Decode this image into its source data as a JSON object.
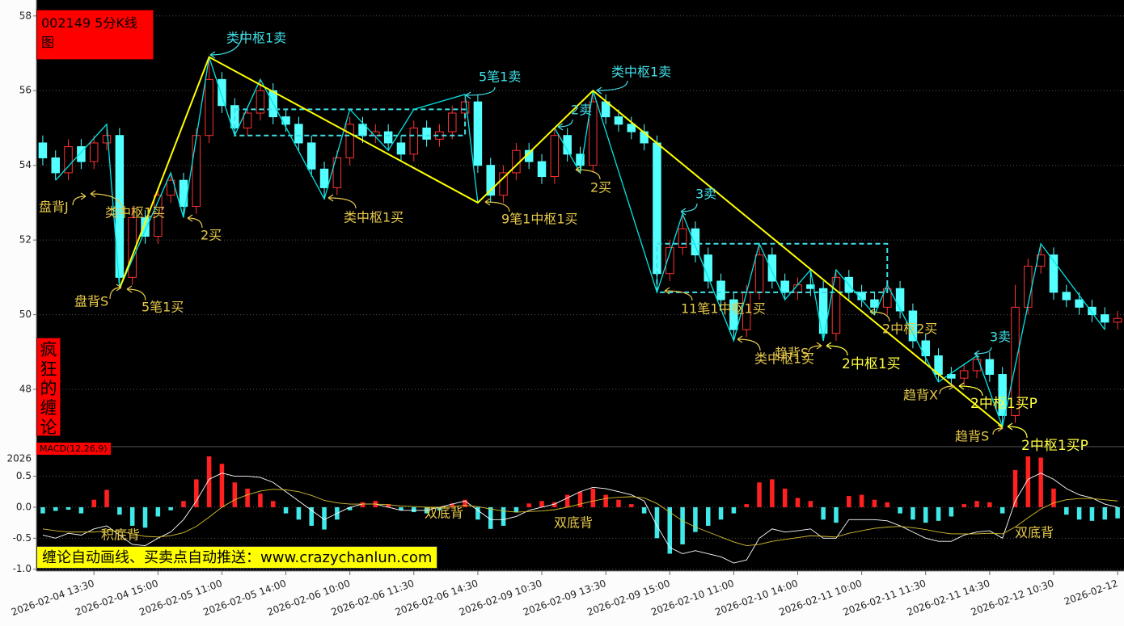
{
  "chart_data": [
    {
      "type": "candlestick",
      "title": "002149 5分K线图",
      "side_label": "疯狂的缠论",
      "categories": [
        null,
        null,
        null,
        null,
        "2026-02-04 13:30",
        null,
        null,
        null,
        null,
        "2026-02-04 15:00",
        null,
        null,
        null,
        null,
        "2026-02-05 11:00",
        null,
        null,
        null,
        null,
        "2026-02-05 14:00",
        null,
        null,
        null,
        null,
        "2026-02-06 10:00",
        null,
        null,
        null,
        null,
        "2026-02-06 11:30",
        null,
        null,
        null,
        null,
        "2026-02-06 14:30",
        null,
        null,
        null,
        null,
        "2026-02-09 10:30",
        null,
        null,
        null,
        null,
        "2026-02-09 13:30",
        null,
        null,
        null,
        null,
        "2026-02-09 15:00",
        null,
        null,
        null,
        null,
        "2026-02-10 11:00",
        null,
        null,
        null,
        null,
        "2026-02-10 14:00",
        null,
        null,
        null,
        null,
        "2026-02-11 10:00",
        null,
        null,
        null,
        null,
        "2026-02-11 11:30",
        null,
        null,
        null,
        null,
        "2026-02-11 14:30",
        null,
        null,
        null,
        null,
        "2026-02-12 10:30",
        null,
        null,
        null,
        null,
        "2026-02-12"
      ],
      "open": [
        54.6,
        54.2,
        53.8,
        54.5,
        54.1,
        54.6,
        54.8,
        51.0,
        52.6,
        52.1,
        53.2,
        53.6,
        52.9,
        54.8,
        56.3,
        55.6,
        55.0,
        55.4,
        56.0,
        55.3,
        55.1,
        54.6,
        53.9,
        53.4,
        54.2,
        55.1,
        54.8,
        54.9,
        54.6,
        54.3,
        55.0,
        54.7,
        54.9,
        55.4,
        55.7,
        54.0,
        53.2,
        53.8,
        54.4,
        54.1,
        53.7,
        54.8,
        54.3,
        54.0,
        55.7,
        55.3,
        55.1,
        54.9,
        54.6,
        51.1,
        51.8,
        52.3,
        51.6,
        50.9,
        50.4,
        49.6,
        50.6,
        51.6,
        50.9,
        50.6,
        50.8,
        50.7,
        49.5,
        51.0,
        50.6,
        50.4,
        50.2,
        50.7,
        50.1,
        49.3,
        48.9,
        48.4,
        48.3,
        48.5,
        48.8,
        48.4,
        47.3,
        50.2,
        51.3,
        51.6,
        50.6,
        50.4,
        50.2,
        50.0,
        49.8
      ],
      "high": [
        54.8,
        54.4,
        54.7,
        54.7,
        54.8,
        55.1,
        55.0,
        52.9,
        52.8,
        53.4,
        53.8,
        53.8,
        55.0,
        56.9,
        56.5,
        55.8,
        55.6,
        56.3,
        56.2,
        55.5,
        55.3,
        54.8,
        54.1,
        54.4,
        55.3,
        55.3,
        55.1,
        55.1,
        54.8,
        55.2,
        55.2,
        55.1,
        55.6,
        55.9,
        55.9,
        54.2,
        54.0,
        54.6,
        54.6,
        54.3,
        55.0,
        55.0,
        54.5,
        56.0,
        55.9,
        55.5,
        55.3,
        55.1,
        54.8,
        52.0,
        52.7,
        52.5,
        51.8,
        51.1,
        50.6,
        50.8,
        51.9,
        51.8,
        51.1,
        51.0,
        51.2,
        50.9,
        51.2,
        51.2,
        50.8,
        50.6,
        50.9,
        50.9,
        50.3,
        49.5,
        49.1,
        48.6,
        48.7,
        49.0,
        49.0,
        48.6,
        50.8,
        51.5,
        51.9,
        51.8,
        50.8,
        50.6,
        50.4,
        50.2,
        50.1
      ],
      "low": [
        54.0,
        53.6,
        53.6,
        53.9,
        53.9,
        54.4,
        50.7,
        50.8,
        51.9,
        51.9,
        53.0,
        52.6,
        52.7,
        54.6,
        55.4,
        54.8,
        54.8,
        55.2,
        55.1,
        54.9,
        54.4,
        53.7,
        53.1,
        53.2,
        54.0,
        54.6,
        54.6,
        54.4,
        54.1,
        54.1,
        54.5,
        54.5,
        54.7,
        55.2,
        53.8,
        53.0,
        53.0,
        53.6,
        53.9,
        53.5,
        53.5,
        54.1,
        53.8,
        53.8,
        55.1,
        54.9,
        54.7,
        54.4,
        50.6,
        50.9,
        51.6,
        51.4,
        50.7,
        50.2,
        49.3,
        49.4,
        50.4,
        50.7,
        50.4,
        50.4,
        50.5,
        49.3,
        49.3,
        50.4,
        50.2,
        50.0,
        50.0,
        49.9,
        49.1,
        48.7,
        48.2,
        48.1,
        48.1,
        48.3,
        48.2,
        47.0,
        47.1,
        50.0,
        51.1,
        50.4,
        50.2,
        50.0,
        49.8,
        49.6,
        49.6
      ],
      "close": [
        54.2,
        53.8,
        54.5,
        54.1,
        54.6,
        54.8,
        51.0,
        52.6,
        52.1,
        53.2,
        53.6,
        52.9,
        54.8,
        56.3,
        55.6,
        55.0,
        55.4,
        56.0,
        55.3,
        55.1,
        54.6,
        53.9,
        53.4,
        54.2,
        55.1,
        54.8,
        54.9,
        54.6,
        54.3,
        55.0,
        54.7,
        54.9,
        55.4,
        55.7,
        54.0,
        53.2,
        53.8,
        54.4,
        54.1,
        53.7,
        54.8,
        54.3,
        54.0,
        55.7,
        55.3,
        55.1,
        54.9,
        54.6,
        51.1,
        51.8,
        52.3,
        51.6,
        50.9,
        50.4,
        49.6,
        50.6,
        51.6,
        50.9,
        50.6,
        50.8,
        50.7,
        49.5,
        51.0,
        50.6,
        50.4,
        50.2,
        50.7,
        50.1,
        49.3,
        48.9,
        48.4,
        48.3,
        48.5,
        48.8,
        48.4,
        47.3,
        50.2,
        51.3,
        51.6,
        50.6,
        50.4,
        50.2,
        50.0,
        49.8,
        49.9
      ],
      "up_color": "#ff3232",
      "down_color": "#54ffff",
      "ylim": [
        46.53,
        58.32
      ],
      "yticks": [
        48,
        50,
        52,
        54,
        56,
        58
      ],
      "grid": true,
      "strokes": [
        {
          "color": "#00e5e5",
          "x": [
            1,
            5,
            6,
            10,
            11,
            13,
            15,
            17,
            22,
            24,
            27,
            29,
            33,
            34,
            40,
            42,
            43,
            48,
            50,
            54,
            56,
            58,
            60,
            61,
            62,
            65,
            66,
            70,
            73,
            75,
            78,
            83
          ],
          "values": [
            53.6,
            55.1,
            50.7,
            53.8,
            52.6,
            56.9,
            54.8,
            56.3,
            53.1,
            55.5,
            54.4,
            55.5,
            55.9,
            53.0,
            55.0,
            53.8,
            56.0,
            50.6,
            52.7,
            49.3,
            51.9,
            50.4,
            51.2,
            49.3,
            51.2,
            50.0,
            50.8,
            48.2,
            48.9,
            47.0,
            51.9,
            49.6
          ]
        },
        {
          "color": "#ffff00",
          "x": [
            6,
            13,
            34,
            43,
            75
          ],
          "values": [
            50.7,
            56.9,
            53.0,
            56.0,
            47.0
          ]
        }
      ],
      "zones": [
        {
          "color": "#40e0e8",
          "x": [
            15,
            33
          ],
          "values": [
            54.8,
            55.5
          ]
        },
        {
          "color": "#40e0e8",
          "x": [
            48,
            66
          ],
          "values": [
            50.6,
            51.9
          ]
        }
      ],
      "annotations": [
        {
          "text": "类中枢1卖",
          "color": "#40e0e8"
        },
        {
          "text": "5笔1卖",
          "color": "#40e0e8"
        },
        {
          "text": "类中枢1卖",
          "color": "#40e0e8"
        },
        {
          "text": "2卖",
          "color": "#40e0e8"
        },
        {
          "text": "3卖",
          "color": "#40e0e8"
        },
        {
          "text": "3卖",
          "color": "#40e0e8"
        },
        {
          "text": "盘背J",
          "color": "#e6c84a"
        },
        {
          "text": "类中枢1买",
          "color": "#e6c84a"
        },
        {
          "text": "2买",
          "color": "#e6c84a"
        },
        {
          "text": "盘背S",
          "color": "#e6c84a"
        },
        {
          "text": "5笔1买",
          "color": "#e6c84a"
        },
        {
          "text": "类中枢1买",
          "color": "#e6c84a"
        },
        {
          "text": "9笔1中枢1买",
          "color": "#e6c84a"
        },
        {
          "text": "2买",
          "color": "#e6c84a"
        },
        {
          "text": "11笔1中枢1买",
          "color": "#e6c84a"
        },
        {
          "text": "类中枢1买",
          "color": "#e6c84a"
        },
        {
          "text": "趋背S",
          "color": "#e6c84a"
        },
        {
          "text": "2中枢1买",
          "color": "#ffff40"
        },
        {
          "text": "2中枢2买",
          "color": "#e6c84a"
        },
        {
          "text": "趋背X",
          "color": "#e6c84a"
        },
        {
          "text": "2中枢1买P",
          "color": "#ffff40"
        },
        {
          "text": "趋背S",
          "color": "#e6c84a"
        },
        {
          "text": "2中枢1买P",
          "color": "#ffff40"
        }
      ]
    },
    {
      "type": "macd",
      "title": "MACD(12,26,9)",
      "corner_label": "2026",
      "values": [
        -0.1,
        -0.06,
        -0.04,
        -0.1,
        0.12,
        0.28,
        -0.12,
        -0.3,
        -0.33,
        -0.15,
        -0.05,
        0.1,
        0.45,
        0.82,
        0.7,
        0.4,
        0.3,
        0.22,
        0.1,
        -0.1,
        -0.2,
        -0.3,
        -0.36,
        -0.2,
        -0.05,
        0.08,
        0.1,
        0.05,
        -0.05,
        -0.08,
        -0.1,
        -0.05,
        0.06,
        0.12,
        -0.2,
        -0.35,
        -0.3,
        -0.08,
        0.06,
        0.1,
        0.08,
        0.2,
        0.25,
        0.3,
        0.2,
        0.12,
        0.05,
        -0.1,
        -0.5,
        -0.75,
        -0.6,
        -0.4,
        -0.3,
        -0.2,
        -0.1,
        0.05,
        0.4,
        0.45,
        0.3,
        0.15,
        0.1,
        -0.2,
        -0.25,
        0.18,
        0.2,
        0.12,
        0.08,
        -0.1,
        -0.2,
        -0.25,
        -0.22,
        -0.15,
        0.05,
        0.1,
        0.08,
        -0.1,
        0.6,
        0.82,
        0.8,
        0.3,
        -0.12,
        -0.2,
        -0.22,
        -0.2,
        -0.18
      ],
      "up_color": "#ff2020",
      "down_color": "#40e8e8",
      "series": [
        {
          "color": "#ffffff",
          "values": [
            -0.45,
            -0.5,
            -0.42,
            -0.45,
            -0.35,
            -0.3,
            -0.45,
            -0.6,
            -0.62,
            -0.5,
            -0.4,
            -0.2,
            0.1,
            0.45,
            0.55,
            0.5,
            0.5,
            0.48,
            0.4,
            0.25,
            0.1,
            -0.05,
            -0.2,
            -0.1,
            0.0,
            0.05,
            0.05,
            0.0,
            -0.05,
            -0.05,
            -0.05,
            0.0,
            0.05,
            0.1,
            -0.05,
            -0.2,
            -0.2,
            -0.15,
            -0.05,
            0.0,
            0.05,
            0.15,
            0.25,
            0.32,
            0.3,
            0.25,
            0.2,
            0.1,
            -0.3,
            -0.65,
            -0.75,
            -0.7,
            -0.75,
            -0.8,
            -0.9,
            -0.85,
            -0.5,
            -0.35,
            -0.4,
            -0.38,
            -0.35,
            -0.5,
            -0.5,
            -0.2,
            -0.2,
            -0.2,
            -0.22,
            -0.3,
            -0.4,
            -0.5,
            -0.55,
            -0.55,
            -0.45,
            -0.4,
            -0.38,
            -0.5,
            0.1,
            0.45,
            0.55,
            0.45,
            0.3,
            0.2,
            0.15,
            0.05,
            0.0
          ]
        },
        {
          "color": "#d8c030",
          "values": [
            -0.35,
            -0.38,
            -0.4,
            -0.4,
            -0.4,
            -0.38,
            -0.39,
            -0.43,
            -0.47,
            -0.48,
            -0.46,
            -0.41,
            -0.31,
            -0.16,
            0.0,
            0.12,
            0.2,
            0.26,
            0.29,
            0.28,
            0.25,
            0.19,
            0.11,
            0.07,
            0.05,
            0.05,
            0.05,
            0.04,
            0.02,
            0.01,
            0.0,
            0.0,
            0.01,
            0.03,
            0.01,
            -0.03,
            -0.06,
            -0.08,
            -0.07,
            -0.06,
            -0.04,
            0.0,
            0.05,
            0.1,
            0.14,
            0.16,
            0.17,
            0.15,
            0.06,
            -0.08,
            -0.22,
            -0.32,
            -0.4,
            -0.48,
            -0.56,
            -0.62,
            -0.6,
            -0.55,
            -0.52,
            -0.49,
            -0.46,
            -0.47,
            -0.48,
            -0.42,
            -0.38,
            -0.34,
            -0.32,
            -0.31,
            -0.33,
            -0.36,
            -0.4,
            -0.43,
            -0.43,
            -0.43,
            -0.42,
            -0.43,
            -0.32,
            -0.17,
            -0.03,
            0.07,
            0.12,
            0.14,
            0.14,
            0.12,
            0.1
          ]
        }
      ],
      "ylim": [
        -1.03,
        0.95
      ],
      "yticks": [
        0.5,
        {
          "value": 0,
          "label": "0.0"
        },
        -0.5,
        {
          "value": -1,
          "label": "-1.0"
        }
      ],
      "grid": true,
      "banner": "缠论自动画线、买卖点自动推送：www.crazychanlun.com",
      "annotations": [
        {
          "text": "积底背",
          "color": "#e6c84a"
        },
        {
          "text": "双底背",
          "color": "#e6c84a"
        },
        {
          "text": "双底背",
          "color": "#e6c84a"
        },
        {
          "text": "双底背",
          "color": "#e6c84a"
        }
      ]
    }
  ]
}
